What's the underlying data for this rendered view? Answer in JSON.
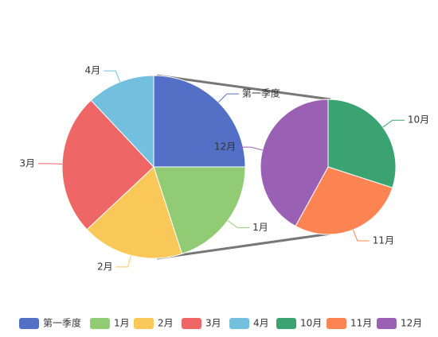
{
  "chart_data": {
    "type": "pie-of-pie",
    "categories": [
      "第一季度",
      "1月",
      "2月",
      "3月",
      "4月"
    ],
    "values": [
      25,
      20,
      18,
      25,
      12
    ],
    "colors": [
      "#5470c6",
      "#91cc75",
      "#fac858",
      "#ee6666",
      "#73c0de"
    ],
    "sub_categories": [
      "10月",
      "11月",
      "12月"
    ],
    "sub_values": [
      30,
      28,
      42
    ],
    "sub_colors": [
      "#3ba272",
      "#fc8452",
      "#9a60b4"
    ],
    "legend": "bottom"
  }
}
